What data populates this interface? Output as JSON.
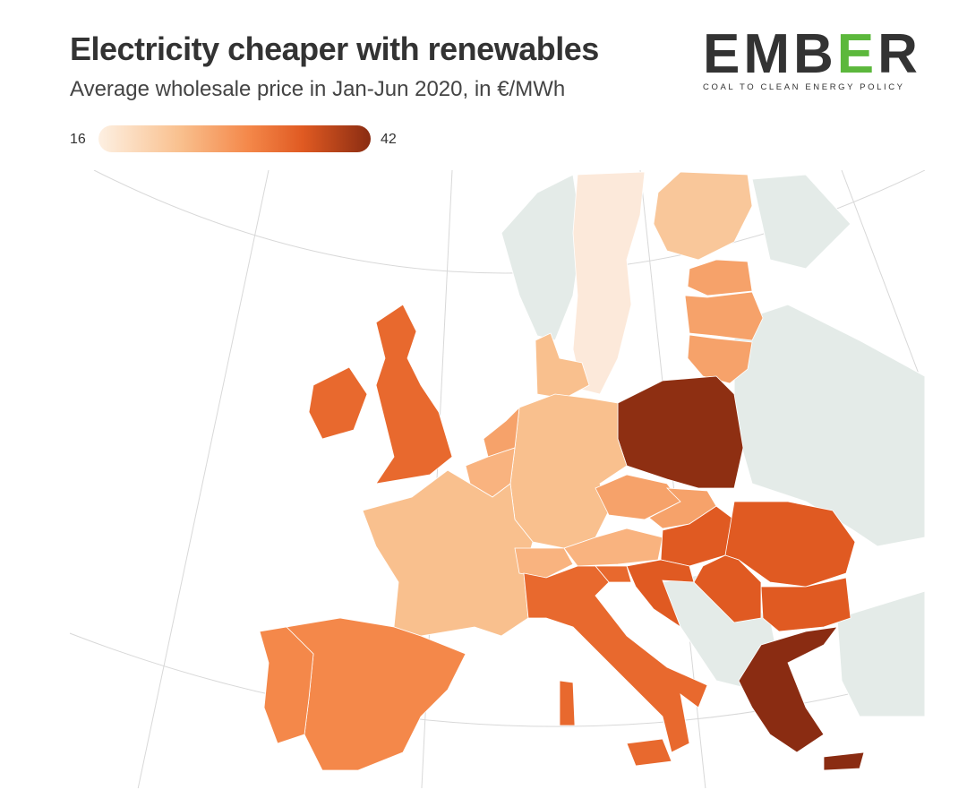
{
  "header": {
    "title": "Electricity cheaper with renewables",
    "subtitle": "Average wholesale price in Jan-Jun 2020, in €/MWh"
  },
  "logo": {
    "word_a": "EMB",
    "word_b": "E",
    "word_c": "R",
    "tagline": "COAL TO CLEAN ENERGY POLICY",
    "accent": "#5cb83c"
  },
  "legend": {
    "min": "16",
    "max": "42",
    "colors": [
      "#fdf0e2",
      "#f9c08e",
      "#f4884a",
      "#e05a22",
      "#8a2c12"
    ]
  },
  "map": {
    "no_data_color": "#e4ebe8",
    "regions": [
      {
        "id": "SE",
        "value": 16,
        "color": "#fce9da"
      },
      {
        "id": "FI",
        "value": 22,
        "color": "#f9c79a"
      },
      {
        "id": "EE",
        "value": 28,
        "color": "#f6a26a"
      },
      {
        "id": "LV",
        "value": 29,
        "color": "#f6a26a"
      },
      {
        "id": "LT",
        "value": 29,
        "color": "#f6a26a"
      },
      {
        "id": "DK",
        "value": 20,
        "color": "#f9c08e"
      },
      {
        "id": "PL",
        "value": 42,
        "color": "#8e2f12"
      },
      {
        "id": "DE",
        "value": 22,
        "color": "#f9c08e"
      },
      {
        "id": "NL",
        "value": 25,
        "color": "#f6a26a"
      },
      {
        "id": "BE",
        "value": 23,
        "color": "#f9b37f"
      },
      {
        "id": "FR",
        "value": 22,
        "color": "#f9c08e"
      },
      {
        "id": "CH",
        "value": 24,
        "color": "#f9b37f"
      },
      {
        "id": "AT",
        "value": 25,
        "color": "#f9b37f"
      },
      {
        "id": "CZ",
        "value": 28,
        "color": "#f6a26a"
      },
      {
        "id": "SK",
        "value": 29,
        "color": "#f6a26a"
      },
      {
        "id": "HU",
        "value": 33,
        "color": "#e05a22"
      },
      {
        "id": "RO",
        "value": 33,
        "color": "#e05a22"
      },
      {
        "id": "BG",
        "value": 32,
        "color": "#e05a22"
      },
      {
        "id": "RS",
        "value": 33,
        "color": "#e05a22"
      },
      {
        "id": "HR",
        "value": 33,
        "color": "#e05a22"
      },
      {
        "id": "SI",
        "value": 33,
        "color": "#e8692e"
      },
      {
        "id": "IT",
        "value": 32,
        "color": "#e8692e"
      },
      {
        "id": "GR",
        "value": 40,
        "color": "#8a2c12"
      },
      {
        "id": "ES",
        "value": 29,
        "color": "#f4884a"
      },
      {
        "id": "PT",
        "value": 29,
        "color": "#f4884a"
      },
      {
        "id": "GB",
        "value": 33,
        "color": "#e8692e"
      },
      {
        "id": "IE",
        "value": 33,
        "color": "#e8692e"
      }
    ]
  }
}
